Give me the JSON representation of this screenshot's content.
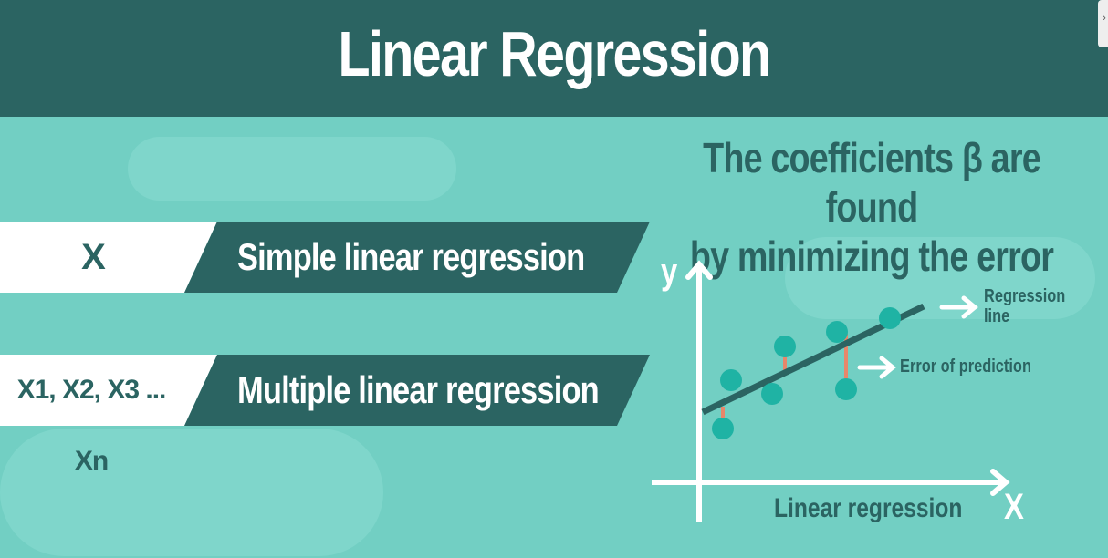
{
  "header": {
    "title": "Linear Regression"
  },
  "bands": [
    {
      "tag": "X",
      "label": "Simple linear regression"
    },
    {
      "tag": "X1, X2, X3 ... Xn",
      "label": "Multiple linear regression"
    }
  ],
  "right_heading": {
    "line1": "The coefficients β are found",
    "line2": "by minimizing the error"
  },
  "diagram": {
    "y_axis_label": "y",
    "x_axis_label": "X",
    "caption": "Linear regression",
    "regression_line_label_1": "Regression",
    "regression_line_label_2": "line",
    "error_label": "Error of prediction"
  },
  "colors": {
    "background": "#72cfc3",
    "header": "#2b6462",
    "dot": "#1fb3a4",
    "error_segment": "#e8866a",
    "text_dark": "#2b6462"
  }
}
